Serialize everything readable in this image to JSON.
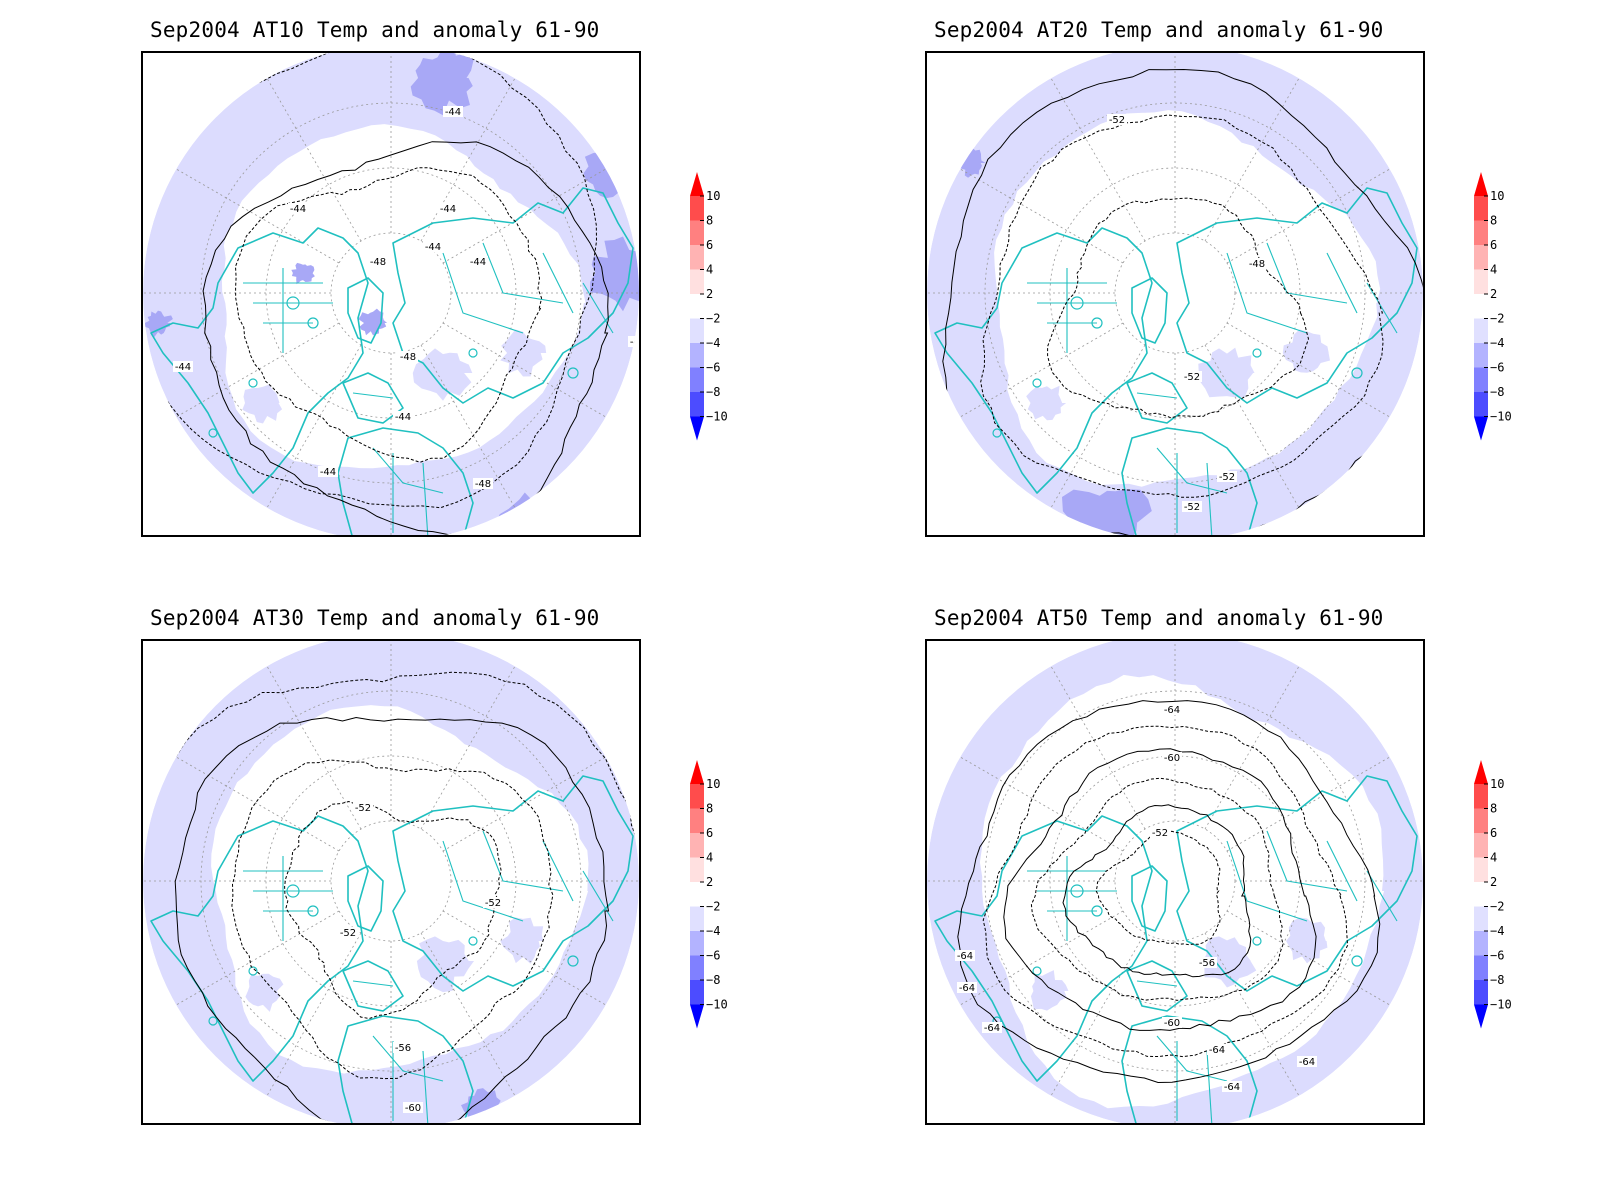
{
  "panels": [
    {
      "id": "at10",
      "title": "Sep2004 AT10 Temp and anomaly 61-90",
      "contour_labels": [
        "-44",
        "-44",
        "-44",
        "-44",
        "-48",
        "-44",
        "-44",
        "-48",
        "-44",
        "-44",
        "-44",
        "-48"
      ]
    },
    {
      "id": "at20",
      "title": "Sep2004 AT20 Temp and anomaly 61-90",
      "contour_labels": [
        "-52",
        "-48",
        "-52",
        "-52",
        "-52"
      ]
    },
    {
      "id": "at30",
      "title": "Sep2004 AT30 Temp and anomaly 61-90",
      "contour_labels": [
        "-52",
        "-52",
        "-52",
        "-56",
        "-60"
      ]
    },
    {
      "id": "at50",
      "title": "Sep2004 AT50 Temp and anomaly 61-90",
      "contour_labels": [
        "-64",
        "-60",
        "-52",
        "-56",
        "-60",
        "-64",
        "-64",
        "-64",
        "-64",
        "-64",
        "-64"
      ]
    }
  ],
  "colorbar": {
    "labels": [
      "10",
      "8",
      "6",
      "4",
      "2",
      "−2",
      "−4",
      "−6",
      "−8",
      "−10"
    ],
    "colors": [
      "#ff0000",
      "#ff4c4c",
      "#ff8080",
      "#ffb3b3",
      "#ffe0e0",
      "#ffffff",
      "#e0e0ff",
      "#b3b3ff",
      "#8080ff",
      "#4c4cff",
      "#0000ff"
    ]
  },
  "map_colors": {
    "light_anomaly": "#dcdcfe",
    "medium_anomaly": "#a8a8f6",
    "coast": "#20c0c0",
    "contour": "#000000",
    "grid": "#999999"
  }
}
